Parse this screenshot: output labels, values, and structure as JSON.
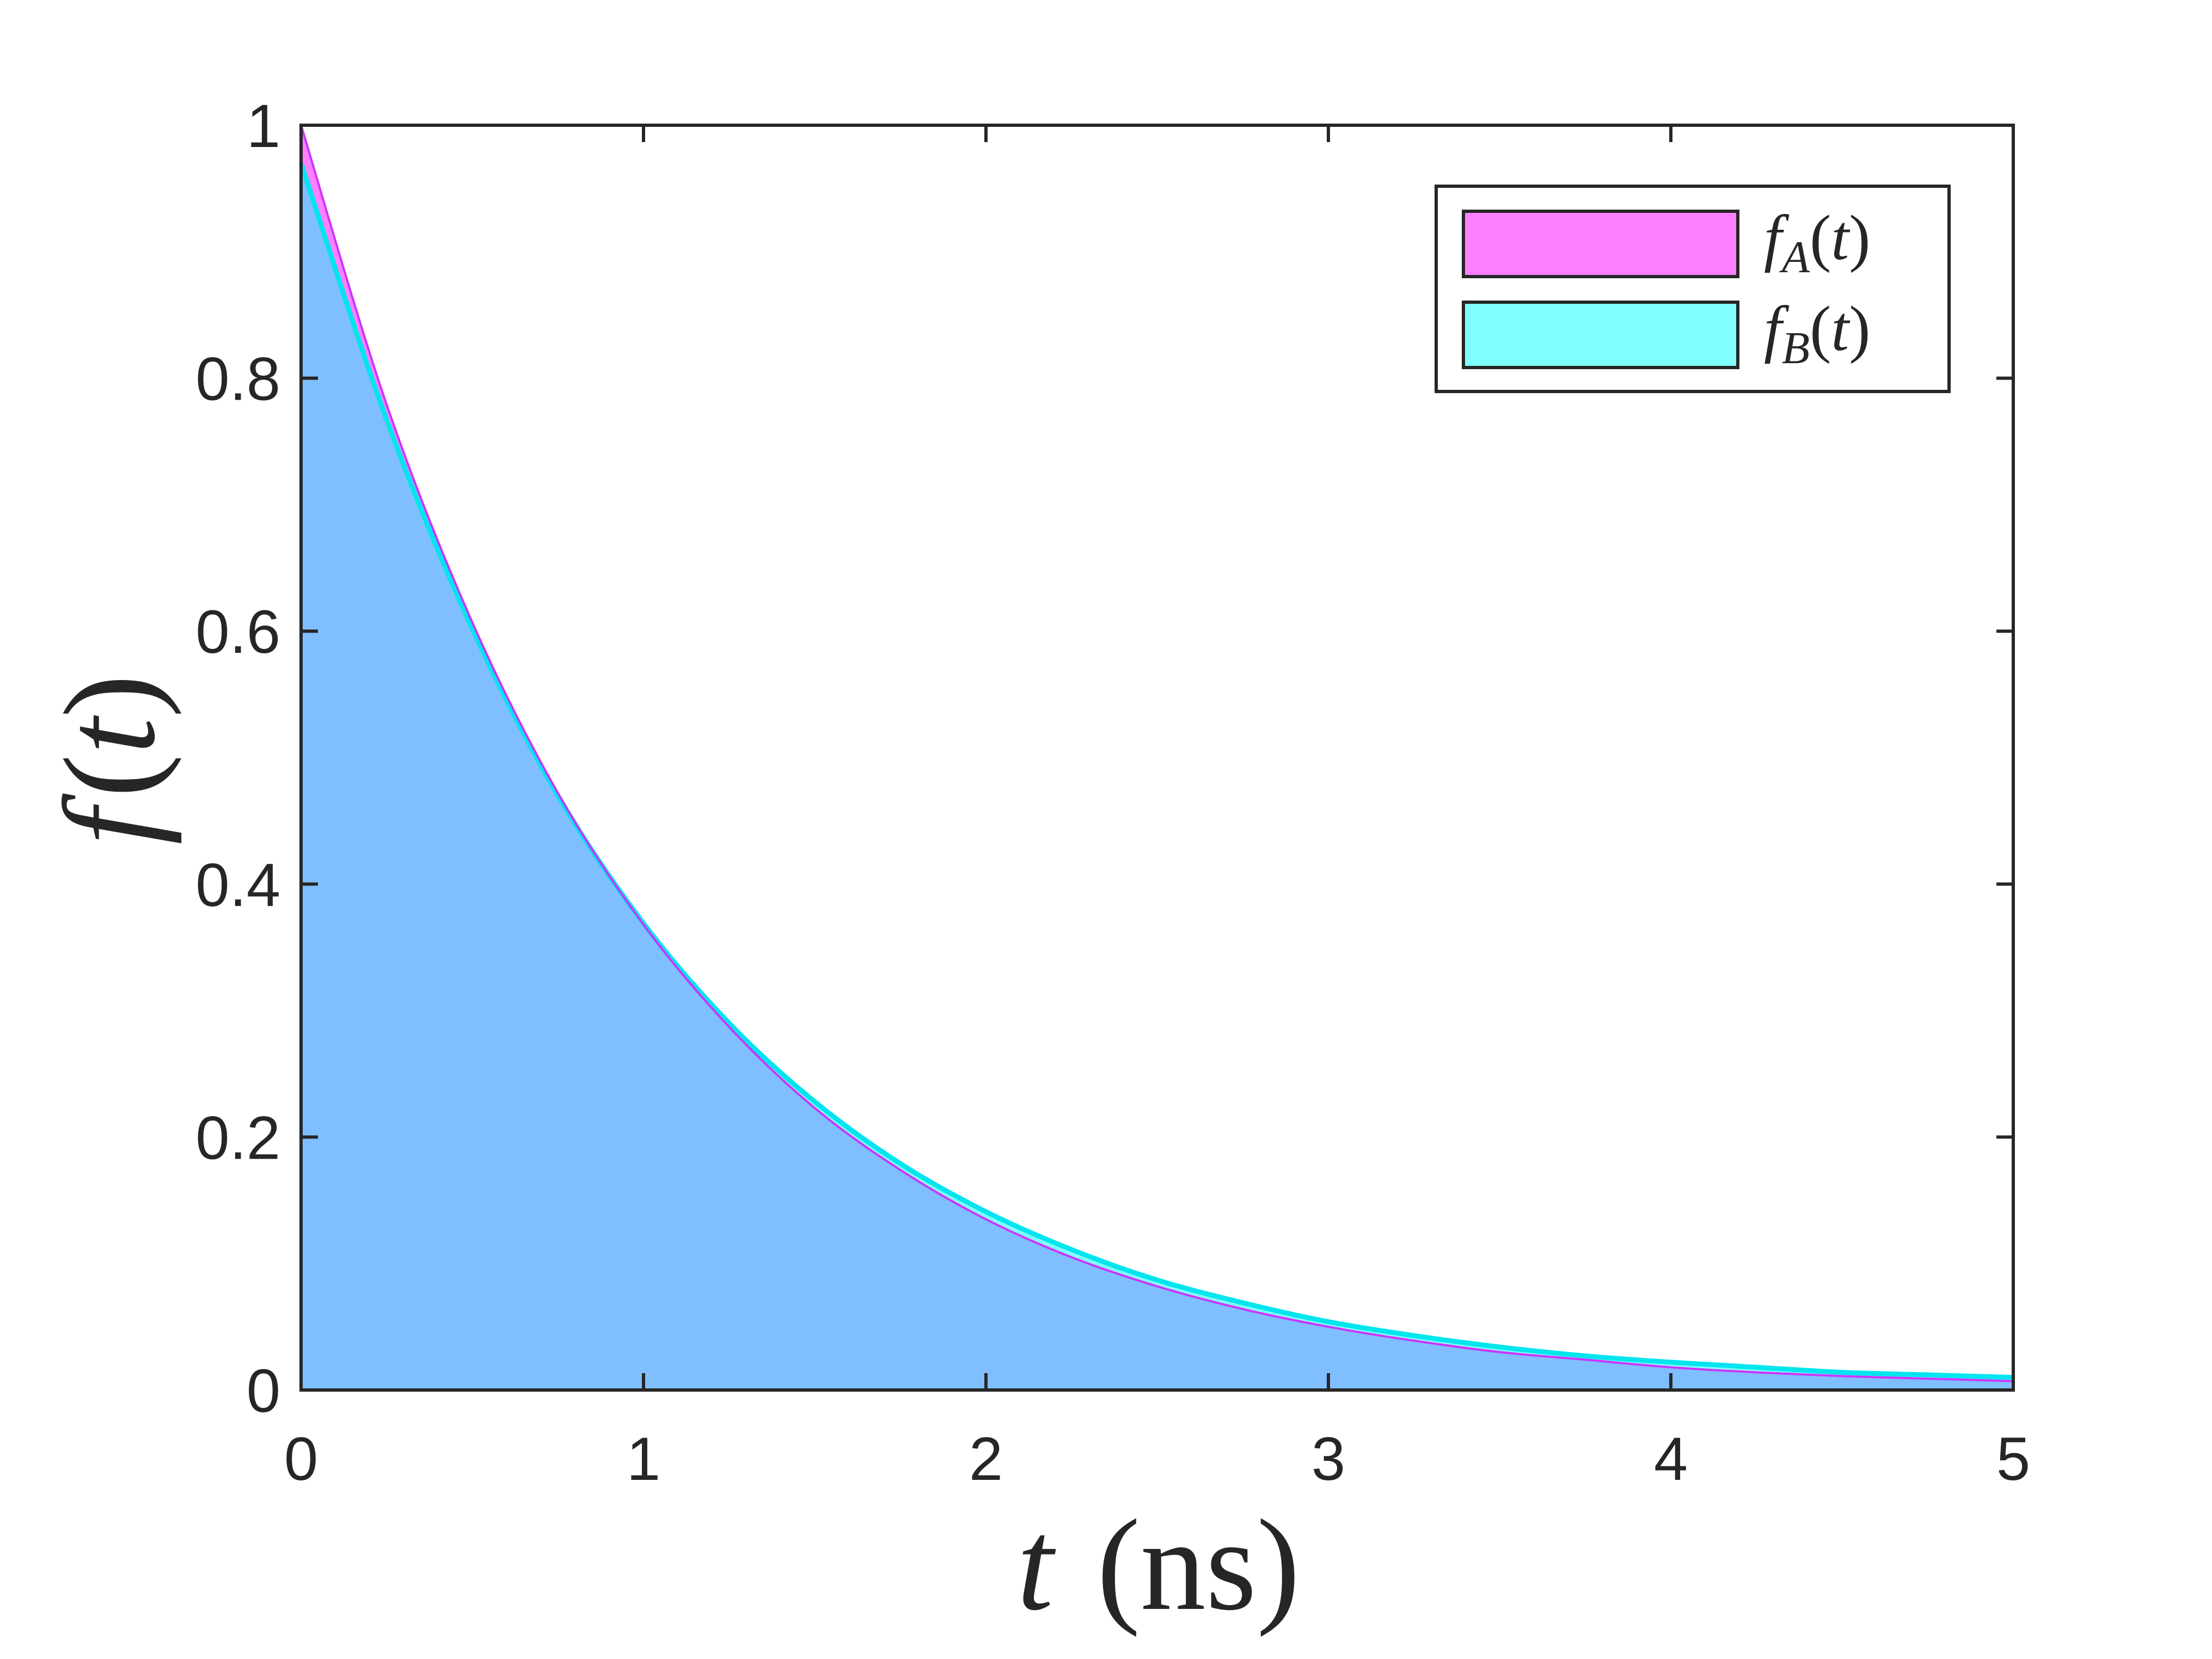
{
  "chart_data": {
    "type": "area",
    "xlabel": {
      "var": "t",
      "unit": "(ns)"
    },
    "ylabel": {
      "func": "f",
      "paren_open": "(",
      "var": "t",
      "paren_close": ")"
    },
    "xlim": [
      0,
      5
    ],
    "ylim": [
      0,
      1
    ],
    "x_ticks": [
      0,
      1,
      2,
      3,
      4,
      5
    ],
    "x_tick_labels": [
      "0",
      "1",
      "2",
      "3",
      "4",
      "5"
    ],
    "y_ticks": [
      0,
      0.2,
      0.4,
      0.6,
      0.8,
      1
    ],
    "y_tick_labels": [
      "0",
      "0.2",
      "0.4",
      "0.6",
      "0.8",
      "1"
    ],
    "grid": false,
    "legend_position": "top-right",
    "overlap_color": "#80BFFF",
    "x": [
      0,
      0.25,
      0.5,
      0.75,
      1,
      1.25,
      1.5,
      1.75,
      2,
      2.25,
      2.5,
      2.75,
      3,
      3.25,
      3.5,
      3.75,
      4,
      4.25,
      4.5,
      4.75,
      5
    ],
    "series": [
      {
        "name": {
          "func": "f",
          "sub": "A",
          "arg": "(t)"
        },
        "color": "#FF80FF",
        "edge_color": "#CC33FF",
        "values": [
          1.0,
          0.779,
          0.607,
          0.472,
          0.368,
          0.287,
          0.223,
          0.174,
          0.135,
          0.105,
          0.082,
          0.064,
          0.05,
          0.039,
          0.03,
          0.024,
          0.018,
          0.014,
          0.011,
          0.009,
          0.007
        ]
      },
      {
        "name": {
          "func": "f",
          "sub": "B",
          "arg": "(t)"
        },
        "color": "#80FFFF",
        "edge_color": "#00E5EE",
        "values": [
          0.97,
          0.767,
          0.602,
          0.47,
          0.369,
          0.29,
          0.228,
          0.179,
          0.141,
          0.111,
          0.087,
          0.069,
          0.054,
          0.043,
          0.034,
          0.027,
          0.022,
          0.018,
          0.014,
          0.012,
          0.01
        ]
      }
    ]
  }
}
